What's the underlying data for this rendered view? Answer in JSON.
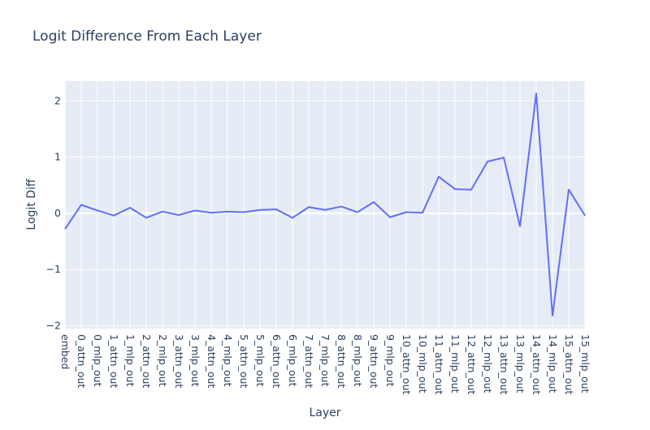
{
  "chart_data": {
    "type": "line",
    "title": "Logit Difference From Each Layer",
    "xlabel": "Layer",
    "ylabel": "Logit Diff",
    "ylim": [
      -2.05,
      2.35
    ],
    "yticks": [
      2,
      1,
      0,
      -1,
      -2
    ],
    "ytick_labels": [
      "2",
      "1",
      "0",
      "−1",
      "−2"
    ],
    "grid": true,
    "line_color": "#636efa",
    "plot_background": "#e5ecf6",
    "categories": [
      "embed",
      "0_attn_out",
      "0_mlp_out",
      "1_attn_out",
      "1_mlp_out",
      "2_attn_out",
      "2_mlp_out",
      "3_attn_out",
      "3_mlp_out",
      "4_attn_out",
      "4_mlp_out",
      "5_attn_out",
      "5_mlp_out",
      "6_attn_out",
      "6_mlp_out",
      "7_attn_out",
      "7_mlp_out",
      "8_attn_out",
      "8_mlp_out",
      "9_attn_out",
      "9_mlp_out",
      "10_attn_out",
      "10_mlp_out",
      "11_attn_out",
      "11_mlp_out",
      "12_attn_out",
      "12_mlp_out",
      "13_attn_out",
      "13_mlp_out",
      "14_attn_out",
      "14_mlp_out",
      "15_attn_out",
      "15_mlp_out"
    ],
    "series": [
      {
        "values": [
          -0.28,
          0.15,
          0.05,
          -0.04,
          0.1,
          -0.08,
          0.03,
          -0.03,
          0.05,
          0.01,
          0.03,
          0.02,
          0.06,
          0.07,
          -0.08,
          0.11,
          0.06,
          0.12,
          0.02,
          0.2,
          -0.07,
          0.02,
          0.01,
          0.65,
          0.43,
          0.42,
          0.92,
          0.99,
          -0.23,
          2.13,
          -1.82,
          0.42,
          -0.04
        ]
      }
    ]
  }
}
